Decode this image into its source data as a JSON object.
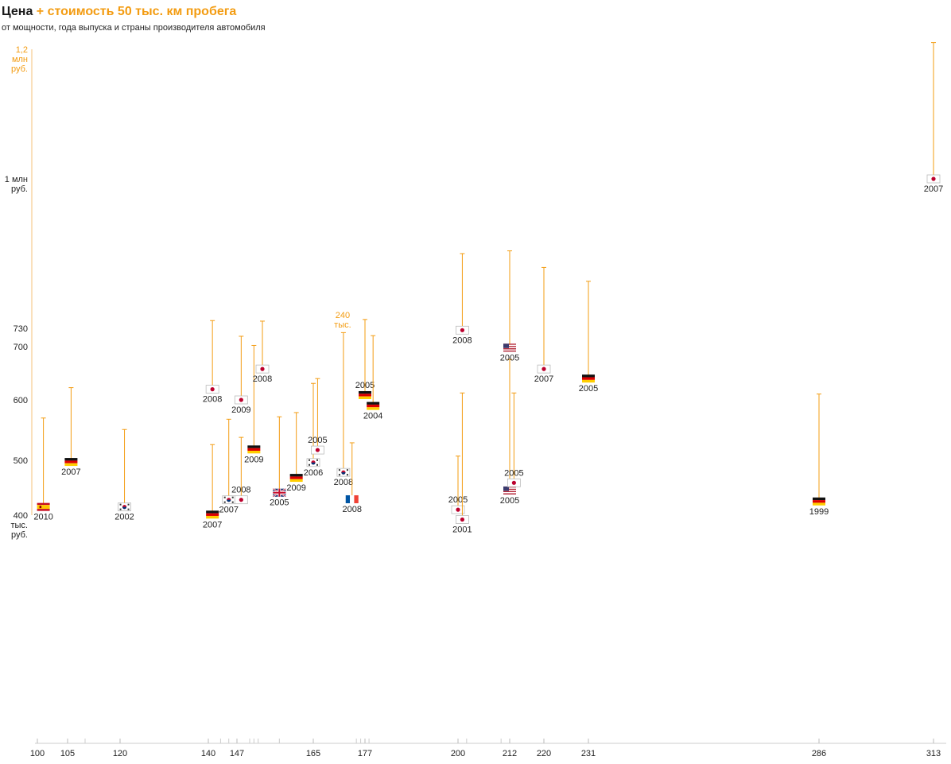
{
  "header": {
    "title_main": "Цена",
    "title_extra": "+ стоимость 50 тыс. км пробега",
    "subtitle": "от мощности, года выпуска и страны производителя автомобиля"
  },
  "colors": {
    "accent": "#f39c12",
    "text": "#1a1a1a",
    "axis": "#cccccc"
  },
  "chart_data": {
    "type": "scatter",
    "title": "Цена + стоимость 50 тыс. км пробега",
    "subtitle": "от мощности, года выпуска и страны производителя автомобиля",
    "ylim": [
      400,
      1200
    ],
    "xlim": [
      100,
      313
    ],
    "y_ticks": [
      {
        "value": 400,
        "lines": [
          "400",
          "тыс.",
          "руб."
        ],
        "accent": false
      },
      {
        "value": 500,
        "lines": [
          "500"
        ],
        "accent": false
      },
      {
        "value": 600,
        "lines": [
          "600"
        ],
        "accent": false
      },
      {
        "value": 700,
        "lines": [
          "700"
        ],
        "accent": false
      },
      {
        "value": 730,
        "lines": [
          "730"
        ],
        "accent": false
      },
      {
        "value": 1000,
        "lines": [
          "1 млн",
          "руб."
        ],
        "accent": false
      },
      {
        "value": 1200,
        "lines": [
          "1,2",
          "млн",
          "руб."
        ],
        "accent": true
      }
    ],
    "x_ticks": [
      100,
      105,
      120,
      140,
      147,
      165,
      177,
      200,
      212,
      220,
      231,
      286,
      313
    ],
    "x_minor_ticks": [
      110,
      143,
      145,
      150,
      151,
      152,
      157,
      175,
      176,
      178,
      202,
      210,
      220
    ],
    "annotation": {
      "text_lines": [
        "240",
        "тыс."
      ],
      "x": 172,
      "y": 736
    },
    "points": [
      {
        "x": 101,
        "price": 415,
        "top": 570,
        "flag": "es",
        "year": "2010"
      },
      {
        "x": 106,
        "price": 497,
        "top": 623,
        "flag": "de",
        "year": "2007"
      },
      {
        "x": 121,
        "price": 415,
        "top": 551,
        "flag": "kr",
        "year": "2002"
      },
      {
        "x": 141,
        "price": 401,
        "top": 526,
        "flag": "de",
        "year": "2007"
      },
      {
        "x": 141,
        "price": 620,
        "top": 744,
        "flag": "jp",
        "year": "2008"
      },
      {
        "x": 145,
        "price": 428,
        "top": 568,
        "flag": "kr",
        "year": "2007"
      },
      {
        "x": 148,
        "price": 428,
        "top": 538,
        "flag": "jp",
        "year": "2008",
        "label_above": true
      },
      {
        "x": 148,
        "price": 600,
        "top": 717,
        "flag": "jp",
        "year": "2009"
      },
      {
        "x": 151,
        "price": 518,
        "top": 702,
        "flag": "de",
        "year": "2009"
      },
      {
        "x": 153,
        "price": 658,
        "top": 743,
        "flag": "jp",
        "year": "2008"
      },
      {
        "x": 157,
        "price": 441,
        "top": 572,
        "flag": "gb",
        "year": "2005"
      },
      {
        "x": 161,
        "price": 468,
        "top": 579,
        "flag": "de",
        "year": "2009"
      },
      {
        "x": 165,
        "price": 496,
        "top": 631,
        "flag": "kr",
        "year": "2006"
      },
      {
        "x": 166,
        "price": 517,
        "top": 640,
        "flag": "jp",
        "year": "2005",
        "label_above": true
      },
      {
        "x": 172,
        "price": 478,
        "top": 723,
        "flag": "kr",
        "year": "2008"
      },
      {
        "x": 174,
        "price": 429,
        "top": 529,
        "flag": "fr",
        "year": "2008"
      },
      {
        "x": 177,
        "price": 609,
        "top": 746,
        "flag": "de",
        "year": "2005",
        "label_above": true
      },
      {
        "x": 179,
        "price": 590,
        "top": 718,
        "flag": "de",
        "year": "2004"
      },
      {
        "x": 200,
        "price": 410,
        "top": 507,
        "flag": "jp",
        "year": "2005",
        "label_above": true
      },
      {
        "x": 201,
        "price": 392,
        "top": 613,
        "flag": "jp",
        "year": "2001"
      },
      {
        "x": 201,
        "price": 727,
        "top": 865,
        "flag": "jp",
        "year": "2008"
      },
      {
        "x": 212,
        "price": 445,
        "top": 676,
        "flag": "us",
        "year": "2005"
      },
      {
        "x": 213,
        "price": 459,
        "top": 613,
        "flag": "jp",
        "year": "2005",
        "label_above": true
      },
      {
        "x": 212,
        "price": 698,
        "top": 870,
        "flag": "us",
        "year": "2005"
      },
      {
        "x": 220,
        "price": 658,
        "top": 840,
        "flag": "jp",
        "year": "2007"
      },
      {
        "x": 231,
        "price": 640,
        "top": 815,
        "flag": "de",
        "year": "2005"
      },
      {
        "x": 286,
        "price": 425,
        "top": 611,
        "flag": "de",
        "year": "1999"
      },
      {
        "x": 313,
        "price": 1000,
        "top": 1210,
        "flag": "jp",
        "year": "2007"
      }
    ]
  }
}
